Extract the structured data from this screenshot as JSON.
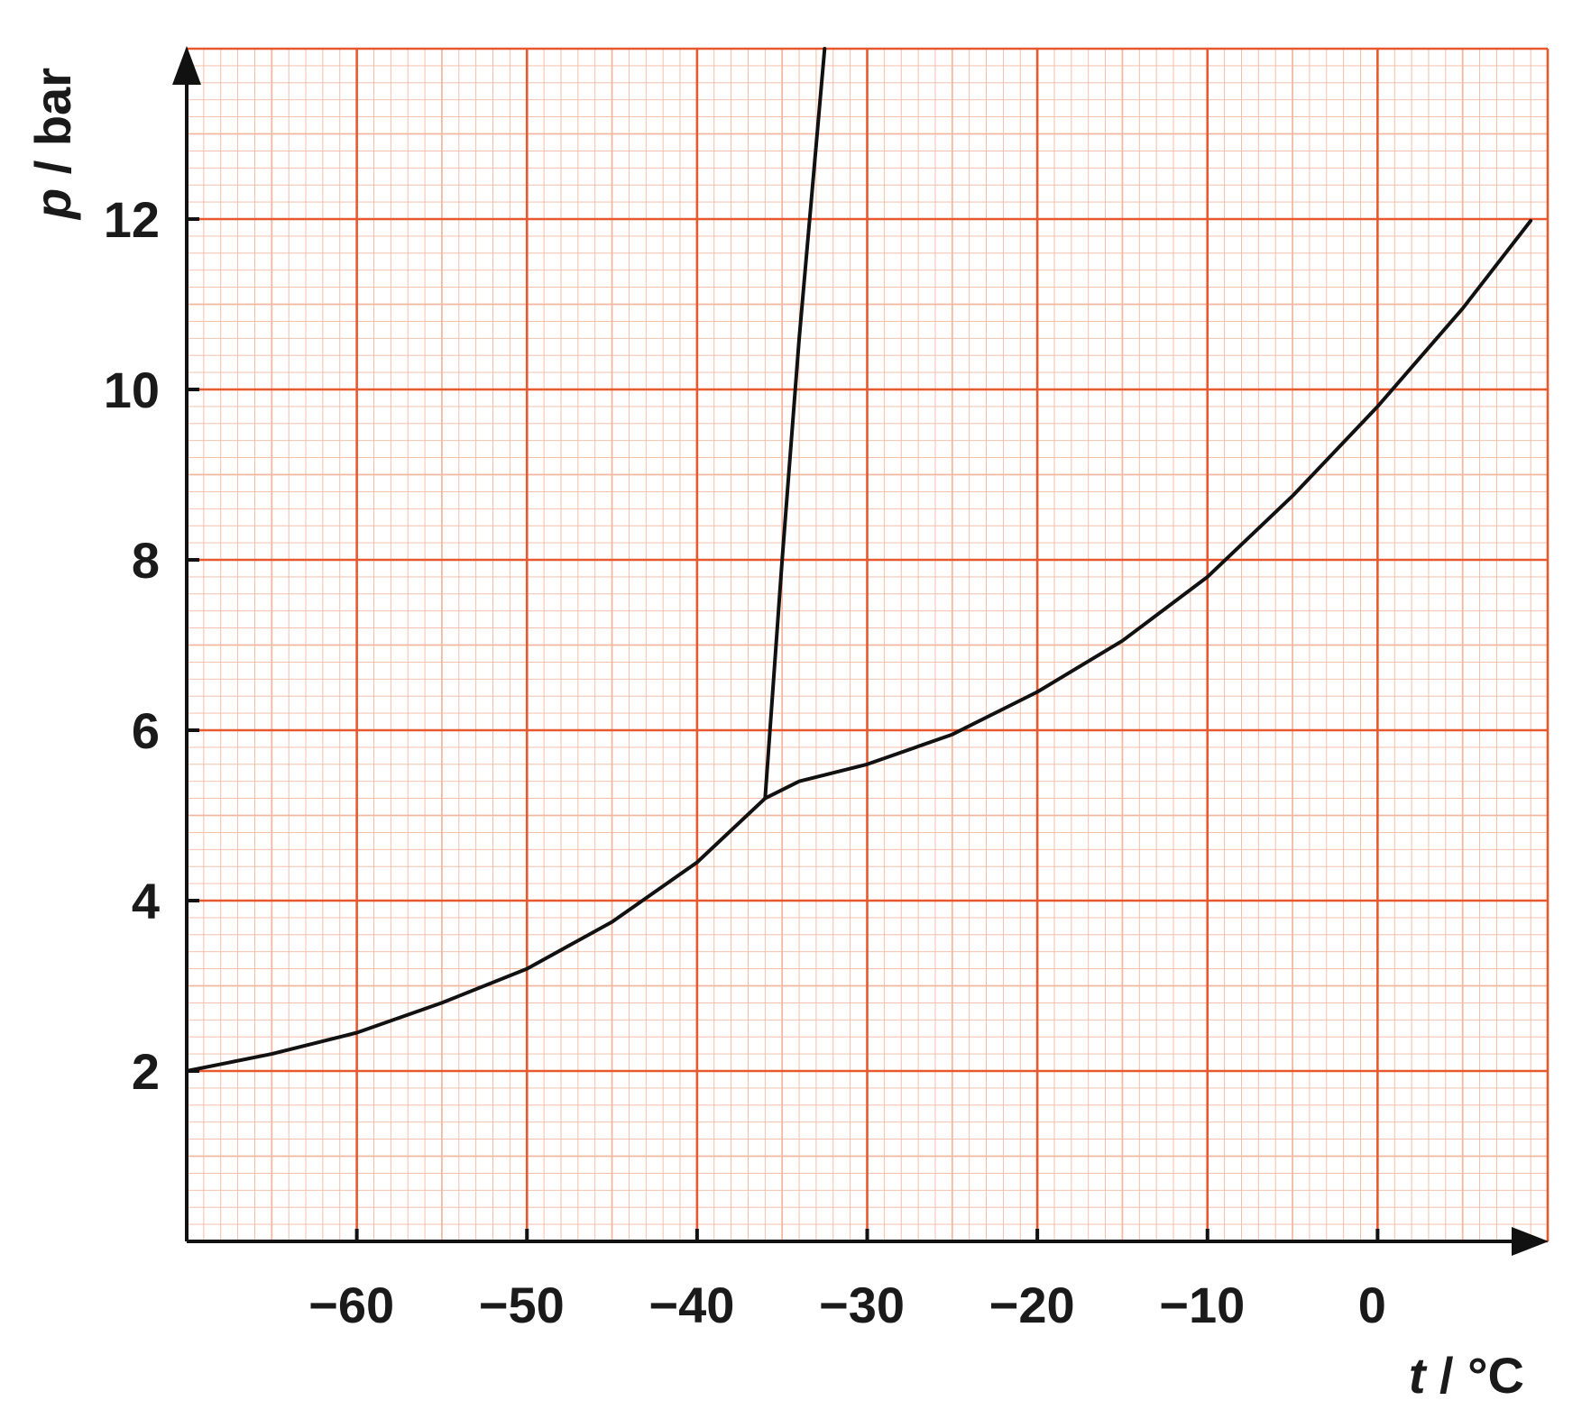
{
  "chart_data": {
    "type": "line",
    "title": "",
    "xlabel": {
      "symbol": "t",
      "unit": " / °C"
    },
    "ylabel": {
      "symbol": "p",
      "unit": " / bar"
    },
    "xlim": [
      -70,
      10
    ],
    "ylim": [
      0,
      14
    ],
    "x_ticks": [
      {
        "value": -60,
        "label": "−60"
      },
      {
        "value": -50,
        "label": "−50"
      },
      {
        "value": -40,
        "label": "−40"
      },
      {
        "value": -30,
        "label": "−30"
      },
      {
        "value": -20,
        "label": "−20"
      },
      {
        "value": -10,
        "label": "−10"
      },
      {
        "value": 0,
        "label": "0"
      }
    ],
    "y_ticks": [
      {
        "value": 2,
        "label": "2"
      },
      {
        "value": 4,
        "label": "4"
      },
      {
        "value": 6,
        "label": "6"
      },
      {
        "value": 8,
        "label": "8"
      },
      {
        "value": 10,
        "label": "10"
      },
      {
        "value": 12,
        "label": "12"
      }
    ],
    "grid": {
      "major_x": 10,
      "medium_x": 5,
      "minor_x": 1,
      "major_y": 2,
      "medium_y": 1,
      "minor_y": 0.2
    },
    "colors": {
      "major_grid": "#e8582f",
      "minor_grid": "#f1b8a0",
      "curve": "#111111",
      "axis": "#111111"
    },
    "series": [
      {
        "points": [
          [
            -70,
            2.0
          ],
          [
            -65,
            2.2
          ],
          [
            -60,
            2.45
          ],
          [
            -55,
            2.8
          ],
          [
            -50,
            3.2
          ],
          [
            -45,
            3.75
          ],
          [
            -40,
            4.45
          ],
          [
            -36,
            5.2
          ]
        ]
      },
      {
        "points": [
          [
            -36,
            5.2
          ],
          [
            -34,
            5.4
          ],
          [
            -30,
            5.6
          ],
          [
            -25,
            5.95
          ],
          [
            -20,
            6.45
          ],
          [
            -15,
            7.05
          ],
          [
            -10,
            7.8
          ],
          [
            -5,
            8.75
          ],
          [
            0,
            9.8
          ],
          [
            5,
            10.95
          ],
          [
            9,
            11.98
          ]
        ]
      },
      {
        "points": [
          [
            -36,
            5.2
          ],
          [
            -35,
            8.0
          ],
          [
            -34,
            10.6
          ],
          [
            -32.5,
            14.0
          ]
        ]
      }
    ]
  }
}
